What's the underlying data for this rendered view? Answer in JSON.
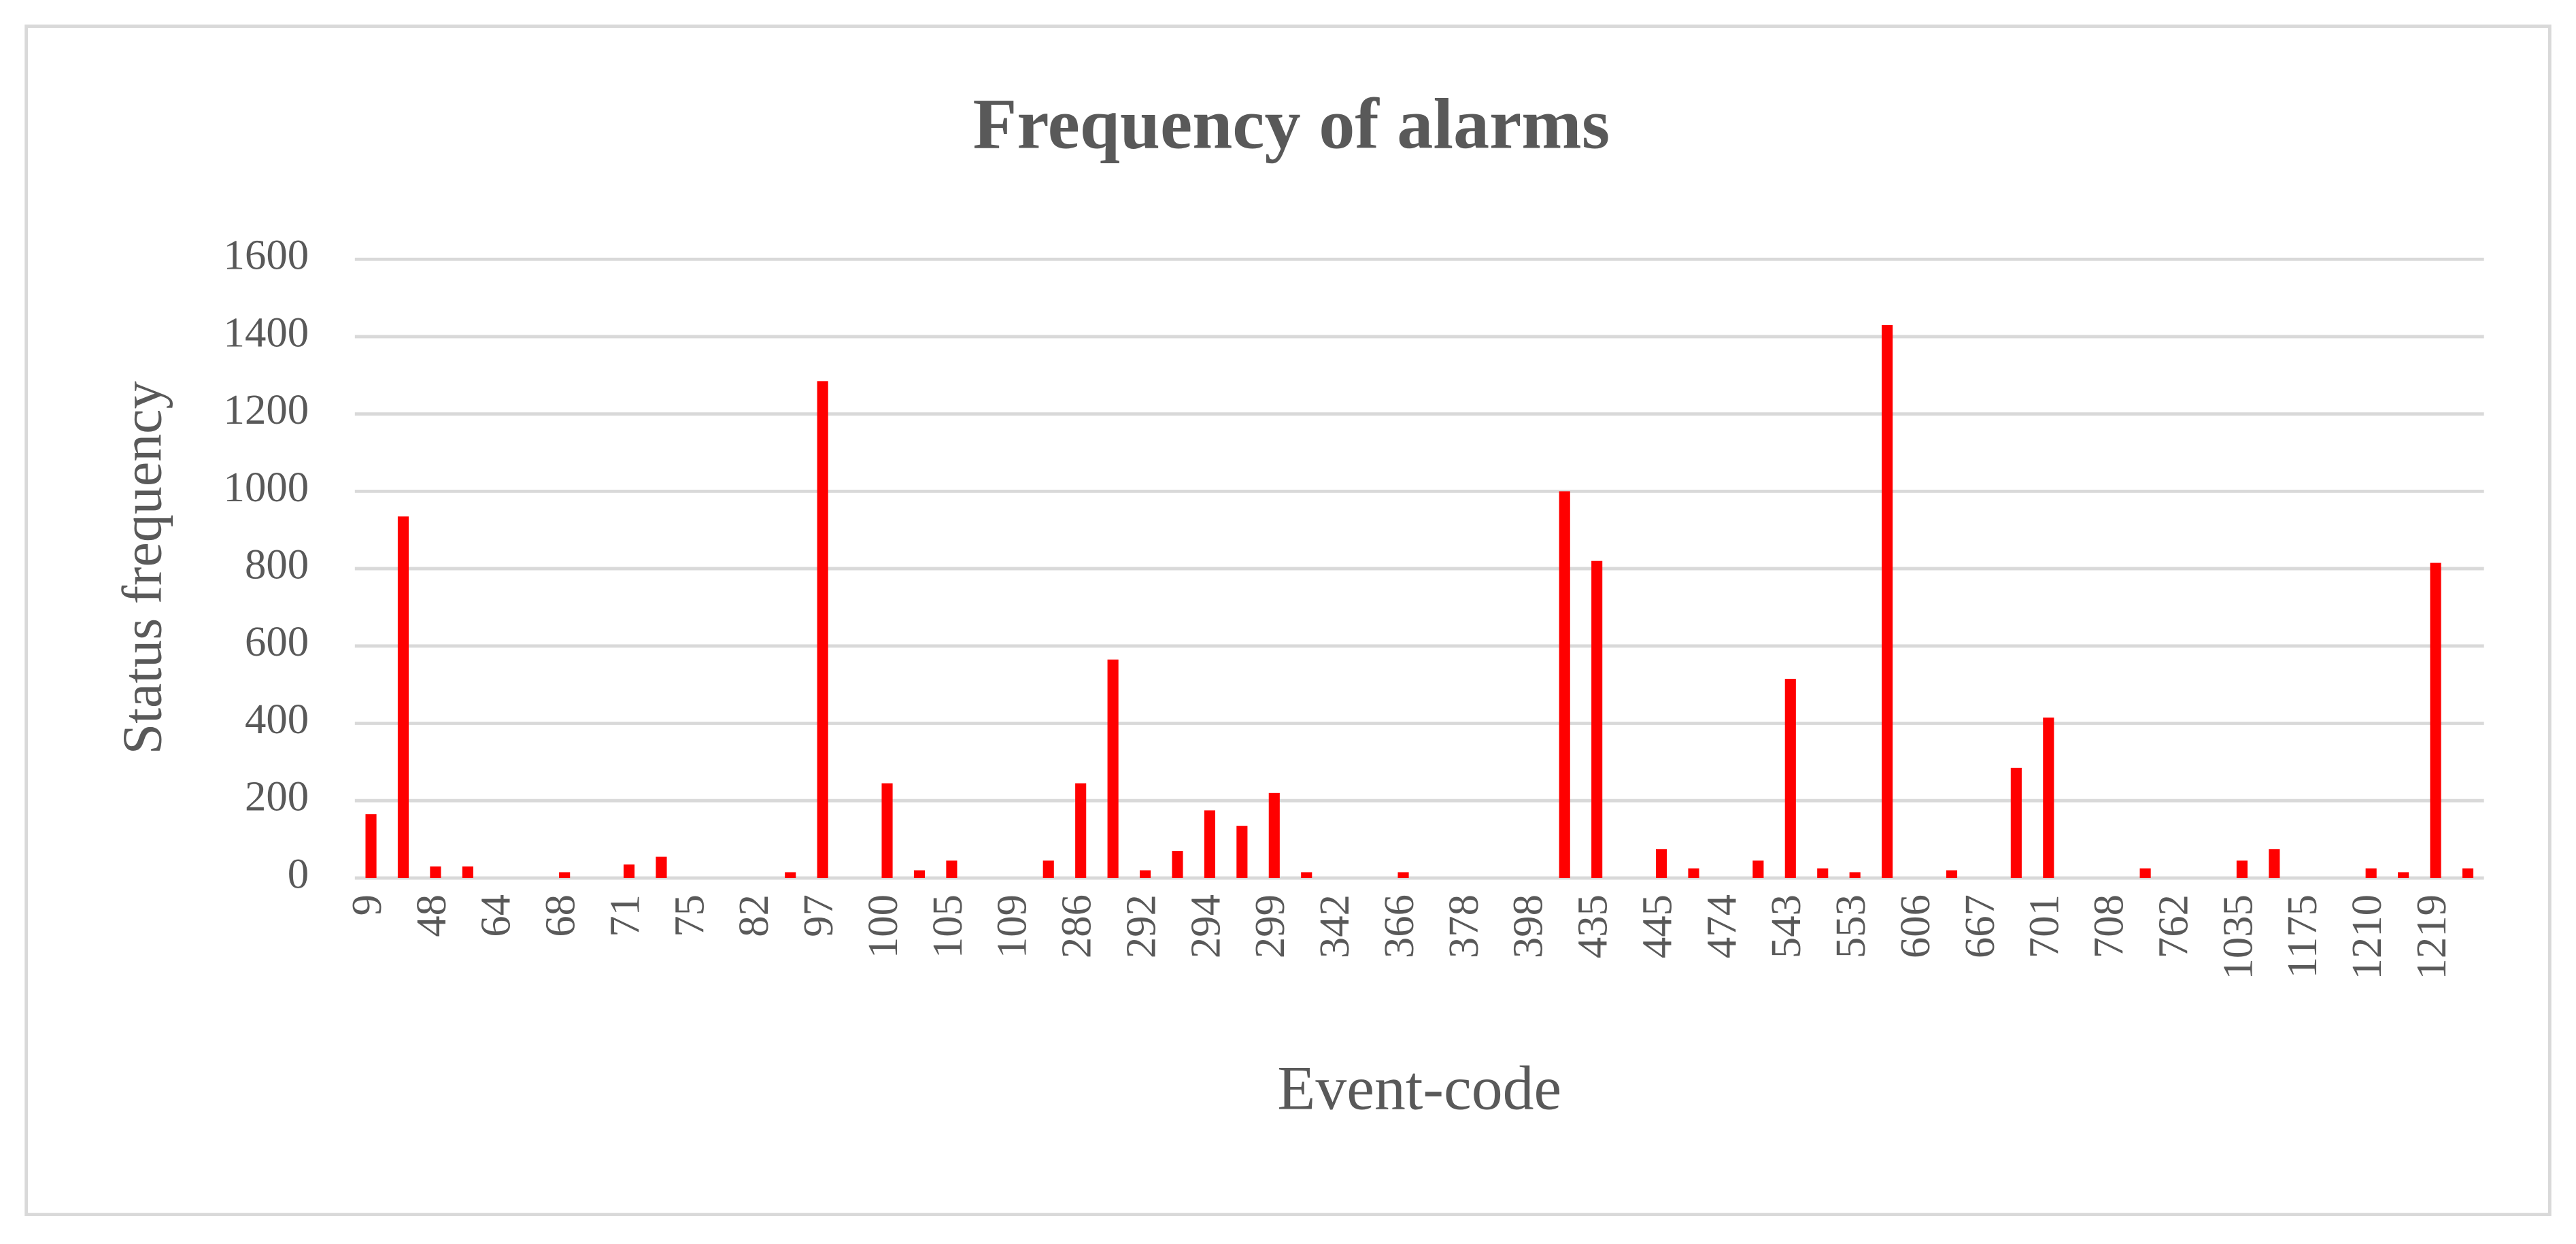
{
  "chart_data": {
    "type": "bar",
    "title": "Frequency of alarms",
    "x_label": "Event-code",
    "y_label": "Status frequency",
    "categories": [
      "9",
      null,
      "48",
      null,
      "64",
      null,
      "68",
      null,
      "71",
      null,
      "75",
      null,
      "82",
      null,
      "97",
      null,
      "100",
      null,
      "105",
      null,
      "109",
      null,
      "286",
      null,
      "292",
      null,
      "294",
      null,
      "299",
      null,
      "342",
      null,
      "366",
      null,
      "378",
      null,
      "398",
      null,
      "435",
      null,
      "445",
      null,
      "474",
      null,
      "543",
      null,
      "553",
      null,
      "606",
      null,
      "667",
      null,
      "701",
      null,
      "708",
      null,
      "762",
      null,
      "1035",
      null,
      "1175",
      null,
      "1210",
      null,
      "1219",
      null
    ],
    "values": [
      165,
      935,
      30,
      30,
      0,
      0,
      15,
      0,
      35,
      55,
      0,
      0,
      0,
      15,
      1285,
      0,
      245,
      20,
      45,
      0,
      0,
      45,
      245,
      565,
      20,
      70,
      175,
      135,
      220,
      15,
      0,
      0,
      15,
      0,
      0,
      0,
      0,
      1000,
      820,
      0,
      75,
      25,
      0,
      45,
      515,
      25,
      15,
      1430,
      0,
      20,
      0,
      285,
      415,
      0,
      0,
      25,
      0,
      0,
      45,
      75,
      0,
      0,
      25,
      15,
      815,
      25
    ],
    "color": "#ff0000",
    "ylim": [
      0,
      1600
    ],
    "yticks": [
      0,
      200,
      400,
      600,
      800,
      1000,
      1200,
      1400,
      1600
    ],
    "grid": true
  }
}
